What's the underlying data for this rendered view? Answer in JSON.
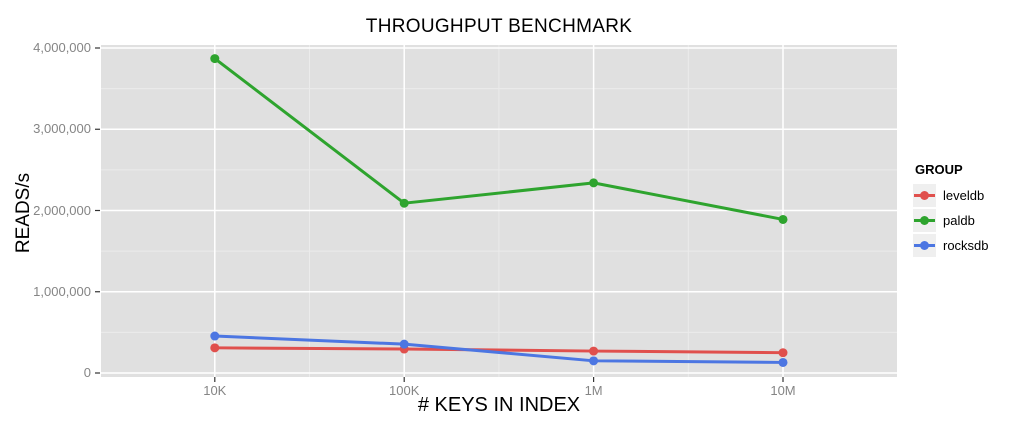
{
  "chart_data": {
    "type": "line",
    "title": "THROUGHPUT BENCHMARK",
    "xlabel": "# KEYS IN INDEX",
    "ylabel": "READS/s",
    "legend_title": "GROUP",
    "legend_position": "right",
    "grid": "major white + faint minor on gray panel",
    "categories": [
      "10K",
      "100K",
      "1M",
      "10M"
    ],
    "series": [
      {
        "name": "leveldb",
        "color": "#e0504d",
        "values": [
          310000,
          295000,
          270000,
          250000
        ]
      },
      {
        "name": "paldb",
        "color": "#2ea42e",
        "values": [
          3870000,
          2090000,
          2340000,
          1890000
        ]
      },
      {
        "name": "rocksdb",
        "color": "#4c76e2",
        "values": [
          455000,
          355000,
          150000,
          130000
        ]
      }
    ],
    "ylim": [
      0,
      4000000
    ],
    "yticks": [
      {
        "value": 0,
        "label": "0"
      },
      {
        "value": 1000000,
        "label": "1,000,000"
      },
      {
        "value": 2000000,
        "label": "2,000,000"
      },
      {
        "value": 3000000,
        "label": "3,000,000"
      },
      {
        "value": 4000000,
        "label": "4,000,000"
      }
    ],
    "minor_yticks": [
      500000,
      1500000,
      2500000,
      3500000
    ],
    "colors": {
      "panel_bg": "#e0e0e0",
      "grid_major": "#ffffff",
      "grid_minor": "#ebebeb",
      "tick_mark": "#333333",
      "tick_label": "#858585",
      "legend_key_bg": "#efefef"
    }
  }
}
